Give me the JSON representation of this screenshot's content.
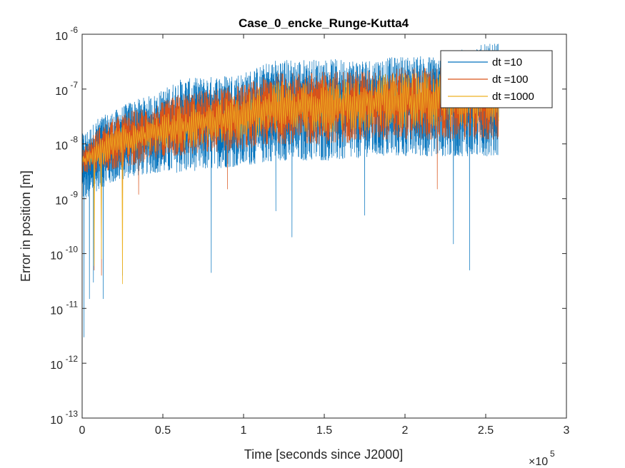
{
  "chart_data": {
    "type": "line",
    "title": "Case_0_encke_Runge-Kutta4",
    "xlabel": "Time [seconds since J2000]",
    "ylabel": "Error in position [m]",
    "x_multiplier_base": "×10",
    "x_multiplier_exp": "5",
    "xlim": [
      0,
      300000
    ],
    "ylim": [
      1e-13,
      1e-06
    ],
    "yscale": "log",
    "grid": false,
    "legend_position": "top-right",
    "x_ticks": [
      {
        "value": 0,
        "label": "0"
      },
      {
        "value": 50000,
        "label": "0.5"
      },
      {
        "value": 100000,
        "label": "1"
      },
      {
        "value": 150000,
        "label": "1.5"
      },
      {
        "value": 200000,
        "label": "2"
      },
      {
        "value": 250000,
        "label": "2.5"
      },
      {
        "value": 300000,
        "label": "3"
      }
    ],
    "y_ticks": [
      {
        "value": 1e-13,
        "base": "10",
        "exp": "-13"
      },
      {
        "value": 1e-12,
        "base": "10",
        "exp": "-12"
      },
      {
        "value": 1e-11,
        "base": "10",
        "exp": "-11"
      },
      {
        "value": 1e-10,
        "base": "10",
        "exp": "-10"
      },
      {
        "value": 1e-09,
        "base": "10",
        "exp": "-9"
      },
      {
        "value": 1e-08,
        "base": "10",
        "exp": "-8"
      },
      {
        "value": 1e-07,
        "base": "10",
        "exp": "-7"
      },
      {
        "value": 1e-06,
        "base": "10",
        "exp": "-6"
      }
    ],
    "series": [
      {
        "name": "dt =10",
        "color": "#0072BD",
        "x": [
          0,
          5000,
          10000,
          20000,
          30000,
          45000,
          60000,
          80000,
          100000,
          120000,
          140000,
          160000,
          180000,
          200000,
          220000,
          240000,
          258000
        ],
        "upper": [
          1.5e-08,
          2e-08,
          3e-08,
          4e-08,
          6e-08,
          8e-08,
          1.5e-07,
          1.7e-07,
          2e-07,
          3.5e-07,
          3.5e-07,
          3.5e-07,
          3.5e-07,
          4e-07,
          4e-07,
          6e-07,
          7e-07
        ],
        "lower": [
          1e-09,
          1e-09,
          1.5e-09,
          2e-09,
          2.5e-09,
          3e-09,
          3e-09,
          3.5e-09,
          4e-09,
          5e-09,
          5e-09,
          5e-09,
          6e-09,
          6e-09,
          6e-09,
          6e-09,
          6e-09
        ],
        "spikes": [
          [
            1200,
            3e-12
          ],
          [
            4500,
            1.5e-11
          ],
          [
            7000,
            3e-11
          ],
          [
            13000,
            1.5e-11
          ],
          [
            25000,
            4e-11
          ],
          [
            80000,
            4.5e-11
          ],
          [
            130000,
            2e-10
          ],
          [
            240000,
            5e-11
          ],
          [
            230000,
            1.5e-10
          ],
          [
            175000,
            5e-10
          ],
          [
            120000,
            6e-10
          ]
        ]
      },
      {
        "name": "dt =100",
        "color": "#D95319",
        "x": [
          0,
          5000,
          10000,
          20000,
          30000,
          45000,
          60000,
          80000,
          100000,
          120000,
          140000,
          160000,
          180000,
          200000,
          220000,
          240000,
          258000
        ],
        "upper": [
          8e-09,
          1.2e-08,
          2e-08,
          3e-08,
          4e-08,
          5e-08,
          8e-08,
          1e-07,
          1.2e-07,
          2e-07,
          2e-07,
          2.2e-07,
          2.2e-07,
          2.5e-07,
          2.5e-07,
          3e-07,
          3e-07
        ],
        "lower": [
          3e-09,
          3e-09,
          3e-09,
          3.5e-09,
          4e-09,
          5e-09,
          6e-09,
          7e-09,
          8e-09,
          1e-08,
          1e-08,
          1e-08,
          1.2e-08,
          1.2e-08,
          1.2e-08,
          1.2e-08,
          1.2e-08
        ],
        "spikes": [
          [
            7500,
            5e-11
          ],
          [
            12000,
            4e-11
          ],
          [
            25000,
            8e-11
          ],
          [
            35000,
            1.2e-09
          ],
          [
            220000,
            1.5e-09
          ],
          [
            90000,
            1.5e-09
          ]
        ]
      },
      {
        "name": "dt =1000",
        "color": "#EDB120",
        "x": [
          0,
          5000,
          10000,
          20000,
          30000,
          45000,
          60000,
          80000,
          100000,
          120000,
          140000,
          160000,
          180000,
          200000,
          220000,
          240000,
          258000
        ],
        "upper": [
          6e-09,
          8e-09,
          1.2e-08,
          2e-08,
          2.5e-08,
          3e-08,
          5e-08,
          6e-08,
          8e-08,
          1.5e-07,
          1.5e-07,
          1.6e-07,
          1.8e-07,
          2e-07,
          2e-07,
          2.2e-07,
          2.2e-07
        ],
        "lower": [
          4e-09,
          4e-09,
          4e-09,
          5e-09,
          6e-09,
          7e-09,
          8e-09,
          1e-08,
          1.2e-08,
          1.5e-08,
          1.5e-08,
          1.6e-08,
          1.8e-08,
          2e-08,
          2e-08,
          2e-08,
          2e-08
        ],
        "spikes": [
          [
            25000,
            2.8e-11
          ],
          [
            7500,
            6e-11
          ],
          [
            12000,
            8e-11
          ]
        ]
      }
    ]
  }
}
